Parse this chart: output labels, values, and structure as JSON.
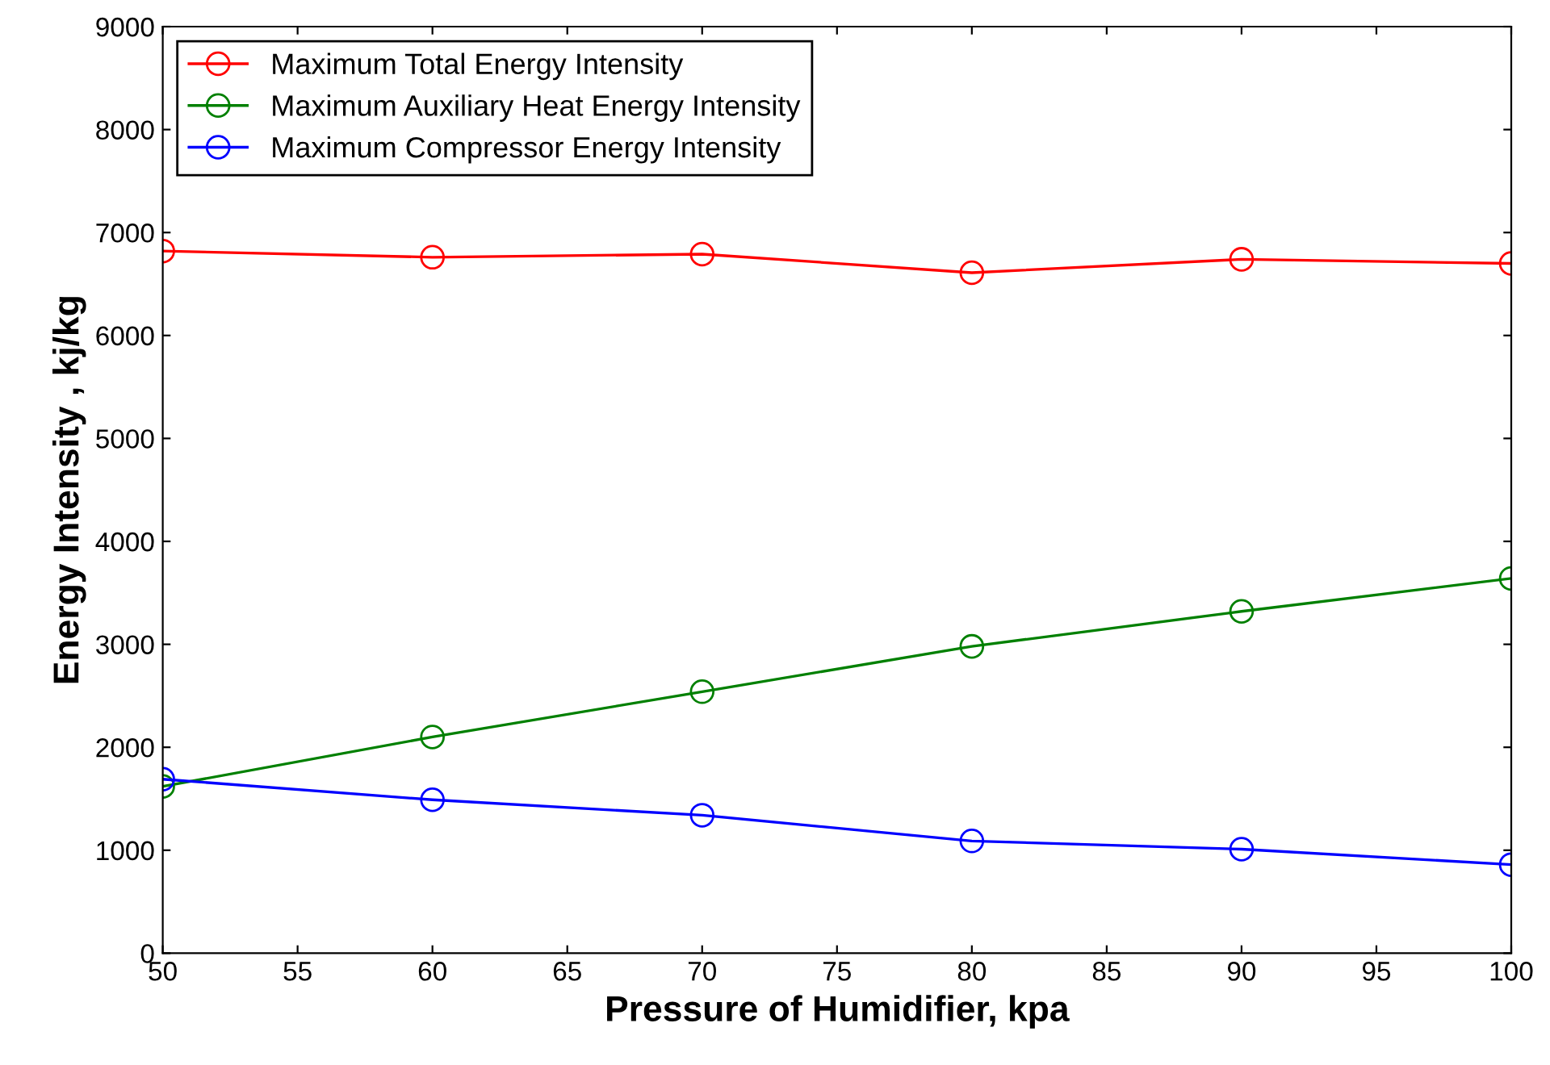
{
  "chart_data": {
    "type": "line",
    "xlabel": "Pressure of Humidifier, kpa",
    "ylabel": "Energy Intensity , kj/kg",
    "x": [
      50,
      60,
      70,
      80,
      90,
      100
    ],
    "series": [
      {
        "name": "Maximum Total Energy Intensity",
        "color": "#ff0000",
        "values": [
          6820,
          6760,
          6790,
          6610,
          6740,
          6700
        ]
      },
      {
        "name": "Maximum Auxiliary Heat Energy Intensity",
        "color": "#008000",
        "values": [
          1620,
          2100,
          2540,
          2980,
          3320,
          3640
        ]
      },
      {
        "name": "Maximum Compressor Energy Intensity",
        "color": "#0000ff",
        "values": [
          1690,
          1490,
          1340,
          1090,
          1010,
          860
        ]
      }
    ],
    "xlim": [
      50,
      100
    ],
    "xticks": [
      50,
      55,
      60,
      65,
      70,
      75,
      80,
      85,
      90,
      95,
      100
    ],
    "ylim": [
      0,
      9000
    ],
    "yticks": [
      0,
      1000,
      2000,
      3000,
      4000,
      5000,
      6000,
      7000,
      8000,
      9000
    ],
    "grid": false,
    "legend": "top left",
    "marker": "circle",
    "line_style": "solid"
  }
}
